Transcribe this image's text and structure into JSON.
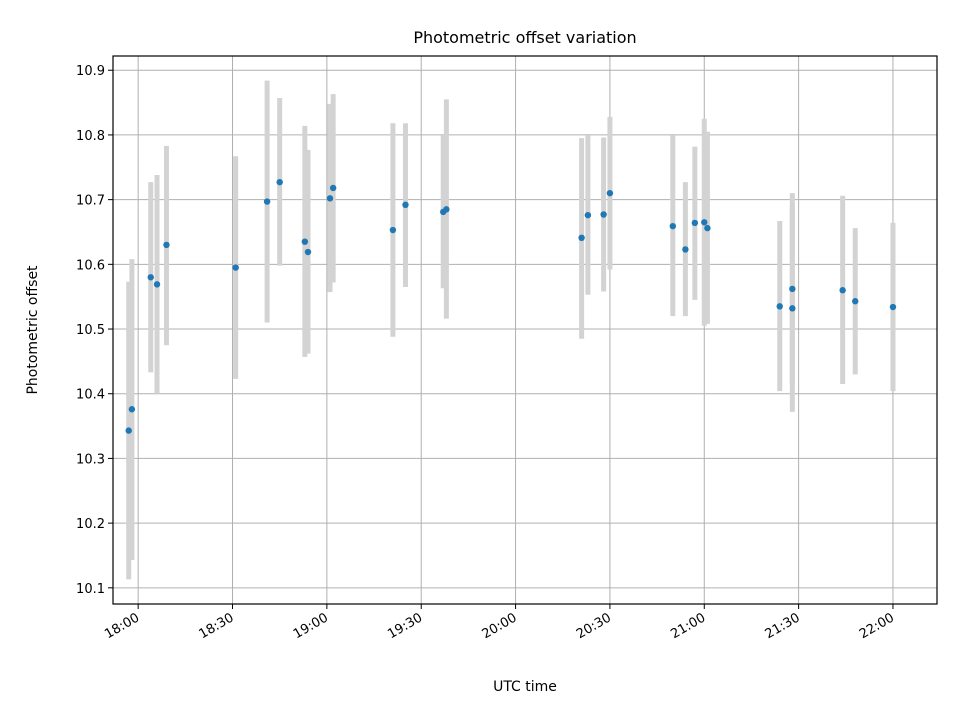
{
  "chart_data": {
    "type": "scatter",
    "title": "Photometric offset variation",
    "xlabel": "UTC time",
    "ylabel": "Photometric offset",
    "x_unit": "UTC time (HH:MM)",
    "xlim": [
      "17:52",
      "22:14"
    ],
    "ylim": [
      10.075,
      10.922
    ],
    "grid": true,
    "x_ticks": [
      "18:00",
      "18:30",
      "19:00",
      "19:30",
      "20:00",
      "20:30",
      "21:00",
      "21:30",
      "22:00"
    ],
    "y_ticks": [
      "10.1",
      "10.2",
      "10.3",
      "10.4",
      "10.5",
      "10.6",
      "10.7",
      "10.8",
      "10.9"
    ],
    "colors": {
      "point": "#1f77b4",
      "errorbar": "#d3d3d3",
      "grid": "#b0b0b0"
    },
    "points": [
      {
        "x": "17:57",
        "y": 10.343,
        "ylow": 10.113,
        "yhigh": 10.573
      },
      {
        "x": "17:58",
        "y": 10.376,
        "ylow": 10.143,
        "yhigh": 10.608
      },
      {
        "x": "18:04",
        "y": 10.58,
        "ylow": 10.433,
        "yhigh": 10.727
      },
      {
        "x": "18:06",
        "y": 10.569,
        "ylow": 10.4,
        "yhigh": 10.738
      },
      {
        "x": "18:09",
        "y": 10.63,
        "ylow": 10.475,
        "yhigh": 10.783
      },
      {
        "x": "18:31",
        "y": 10.595,
        "ylow": 10.423,
        "yhigh": 10.767
      },
      {
        "x": "18:41",
        "y": 10.697,
        "ylow": 10.51,
        "yhigh": 10.884
      },
      {
        "x": "18:45",
        "y": 10.727,
        "ylow": 10.598,
        "yhigh": 10.857
      },
      {
        "x": "18:53",
        "y": 10.635,
        "ylow": 10.457,
        "yhigh": 10.814
      },
      {
        "x": "18:54",
        "y": 10.619,
        "ylow": 10.462,
        "yhigh": 10.777
      },
      {
        "x": "19:01",
        "y": 10.702,
        "ylow": 10.557,
        "yhigh": 10.848
      },
      {
        "x": "19:02",
        "y": 10.718,
        "ylow": 10.572,
        "yhigh": 10.863
      },
      {
        "x": "19:21",
        "y": 10.653,
        "ylow": 10.488,
        "yhigh": 10.818
      },
      {
        "x": "19:25",
        "y": 10.692,
        "ylow": 10.565,
        "yhigh": 10.818
      },
      {
        "x": "19:37",
        "y": 10.681,
        "ylow": 10.563,
        "yhigh": 10.799
      },
      {
        "x": "19:38",
        "y": 10.685,
        "ylow": 10.516,
        "yhigh": 10.855
      },
      {
        "x": "20:21",
        "y": 10.641,
        "ylow": 10.485,
        "yhigh": 10.795
      },
      {
        "x": "20:23",
        "y": 10.676,
        "ylow": 10.553,
        "yhigh": 10.799
      },
      {
        "x": "20:28",
        "y": 10.677,
        "ylow": 10.558,
        "yhigh": 10.796
      },
      {
        "x": "20:30",
        "y": 10.71,
        "ylow": 10.592,
        "yhigh": 10.828
      },
      {
        "x": "20:50",
        "y": 10.659,
        "ylow": 10.52,
        "yhigh": 10.799
      },
      {
        "x": "20:54",
        "y": 10.623,
        "ylow": 10.52,
        "yhigh": 10.727
      },
      {
        "x": "20:57",
        "y": 10.664,
        "ylow": 10.545,
        "yhigh": 10.782
      },
      {
        "x": "21:00",
        "y": 10.665,
        "ylow": 10.505,
        "yhigh": 10.825
      },
      {
        "x": "21:01",
        "y": 10.656,
        "ylow": 10.508,
        "yhigh": 10.805
      },
      {
        "x": "21:24",
        "y": 10.535,
        "ylow": 10.404,
        "yhigh": 10.667
      },
      {
        "x": "21:28",
        "y": 10.562,
        "ylow": 10.413,
        "yhigh": 10.71
      },
      {
        "x": "21:28",
        "y": 10.532,
        "ylow": 10.372,
        "yhigh": 10.692
      },
      {
        "x": "21:44",
        "y": 10.56,
        "ylow": 10.415,
        "yhigh": 10.706
      },
      {
        "x": "21:48",
        "y": 10.543,
        "ylow": 10.43,
        "yhigh": 10.656
      },
      {
        "x": "22:00",
        "y": 10.534,
        "ylow": 10.404,
        "yhigh": 10.664
      }
    ]
  }
}
